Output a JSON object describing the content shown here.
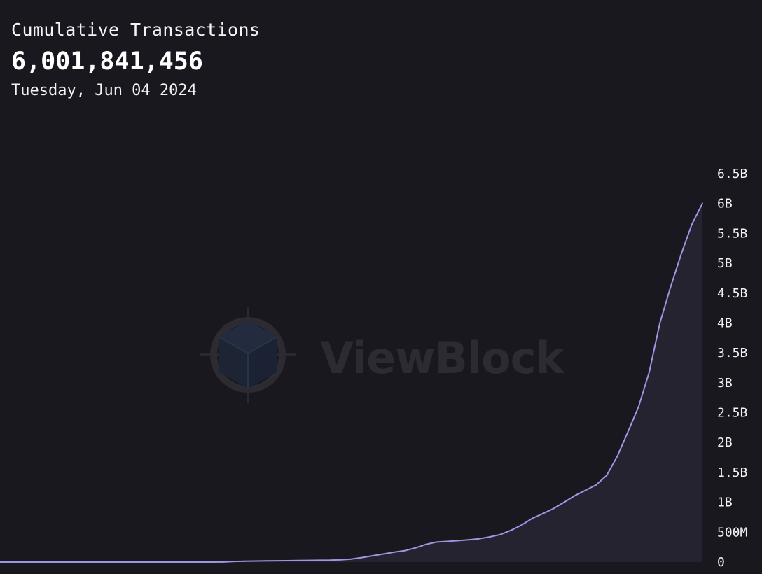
{
  "header": {
    "title": "Cumulative Transactions",
    "value": "6,001,841,456",
    "date": "Tuesday, Jun 04 2024"
  },
  "watermark": {
    "text": "ViewBlock",
    "icon": "viewblock-cube-logo"
  },
  "colors": {
    "background": "#19181f",
    "line": "#9b97e6",
    "area": "#25232f",
    "text": "#ffffff",
    "watermark": "#2c2b32"
  },
  "chart_data": {
    "type": "area",
    "title": "",
    "xlabel": "",
    "ylabel": "",
    "ylim": [
      0,
      6500000000
    ],
    "y_ticks": [
      {
        "value": 0,
        "label": "0"
      },
      {
        "value": 500000000,
        "label": "500M"
      },
      {
        "value": 1000000000,
        "label": "1B"
      },
      {
        "value": 1500000000,
        "label": "1.5B"
      },
      {
        "value": 2000000000,
        "label": "2B"
      },
      {
        "value": 2500000000,
        "label": "2.5B"
      },
      {
        "value": 3000000000,
        "label": "3B"
      },
      {
        "value": 3500000000,
        "label": "3.5B"
      },
      {
        "value": 4000000000,
        "label": "4B"
      },
      {
        "value": 4500000000,
        "label": "4.5B"
      },
      {
        "value": 5000000000,
        "label": "5B"
      },
      {
        "value": 5500000000,
        "label": "5.5B"
      },
      {
        "value": 6000000000,
        "label": "6B"
      },
      {
        "value": 6500000000,
        "label": "6.5B"
      }
    ],
    "x_end_label": "Jun 04 2024",
    "grid": false,
    "legend": "none",
    "series": [
      {
        "values": [
          0,
          0,
          0,
          0,
          0,
          0,
          0,
          0,
          0,
          0,
          0,
          0,
          0,
          0,
          0,
          0,
          0,
          0,
          0,
          0,
          0,
          1000000,
          10000000,
          14000000,
          17000000,
          20000000,
          22000000,
          24000000,
          26000000,
          28000000,
          30000000,
          32000000,
          38000000,
          50000000,
          75000000,
          105000000,
          135000000,
          165000000,
          190000000,
          235000000,
          295000000,
          335000000,
          345000000,
          358000000,
          372000000,
          390000000,
          420000000,
          460000000,
          530000000,
          620000000,
          730000000,
          810000000,
          895000000,
          1000000000,
          1110000000,
          1200000000,
          1290000000,
          1450000000,
          1770000000,
          2180000000,
          2600000000,
          3180000000,
          4000000000,
          4600000000,
          5150000000,
          5650000000,
          6001841456
        ]
      }
    ]
  }
}
